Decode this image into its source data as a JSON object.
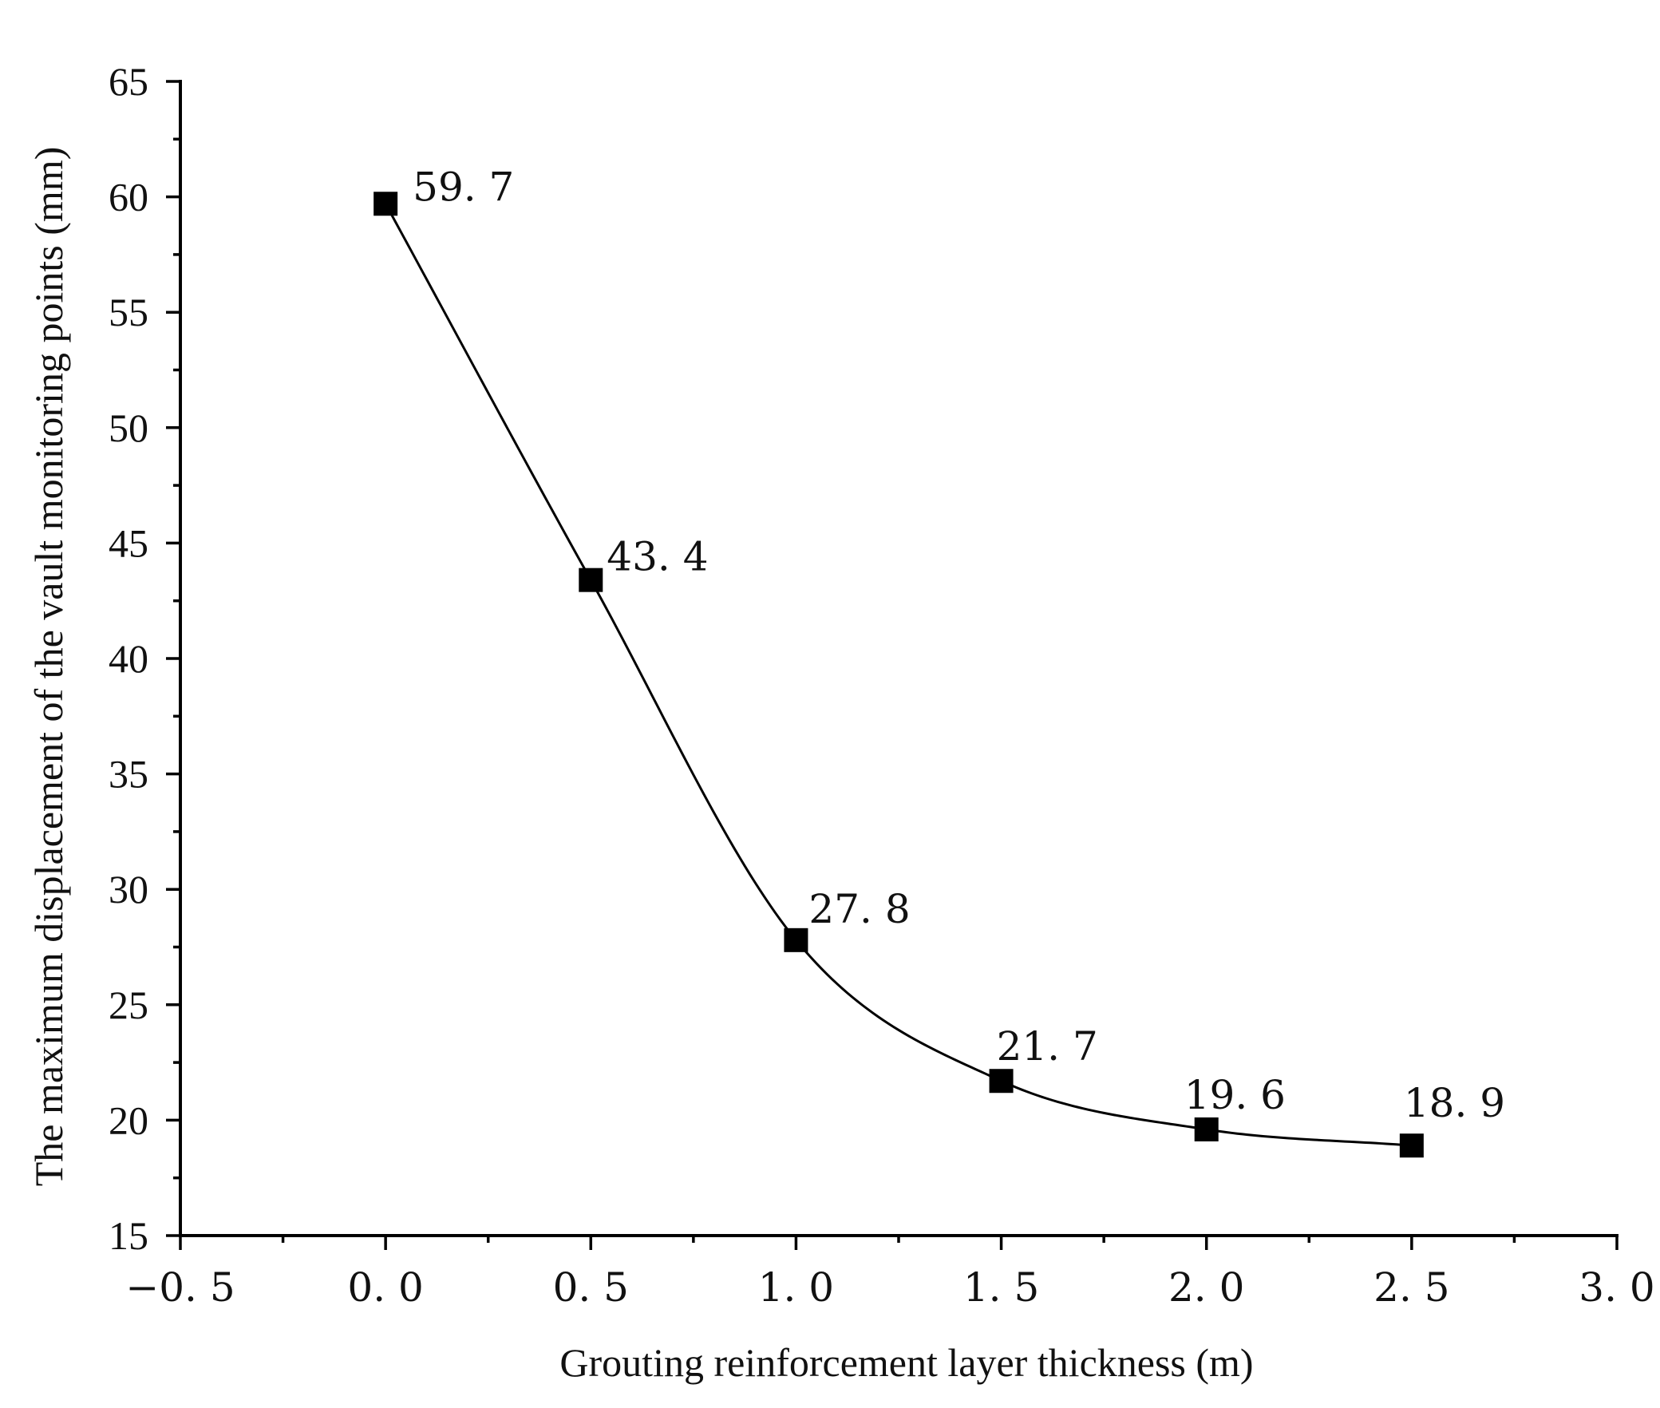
{
  "chart_data": {
    "type": "line",
    "xlabel": "Grouting reinforcement layer thickness (m)",
    "ylabel": "The maximum displacement of the vault monitoring points (mm)",
    "xlim": [
      -0.5,
      3.0
    ],
    "ylim": [
      15,
      65
    ],
    "x_ticks": [
      -0.5,
      0.0,
      0.5,
      1.0,
      1.5,
      2.0,
      2.5,
      3.0
    ],
    "x_tick_labels": [
      "−0. 5",
      "0. 0",
      "0. 5",
      "1. 0",
      "1. 5",
      "2. 0",
      "2. 5",
      "3. 0"
    ],
    "y_ticks": [
      15,
      20,
      25,
      30,
      35,
      40,
      45,
      50,
      55,
      60,
      65
    ],
    "y_tick_labels": [
      "15",
      "20",
      "25",
      "30",
      "35",
      "40",
      "45",
      "50",
      "55",
      "60",
      "65"
    ],
    "grid": false,
    "legend": "none",
    "smooth": true,
    "marker": "square",
    "color": "#000000",
    "series": [
      {
        "x": [
          0.0,
          0.5,
          1.0,
          1.5,
          2.0,
          2.5
        ],
        "values": [
          59.7,
          43.4,
          27.8,
          21.7,
          19.6,
          18.9
        ]
      }
    ],
    "data_labels": [
      "59. 7",
      "43. 4",
      "27. 8",
      "21. 7",
      "19. 6",
      "18. 9"
    ]
  }
}
